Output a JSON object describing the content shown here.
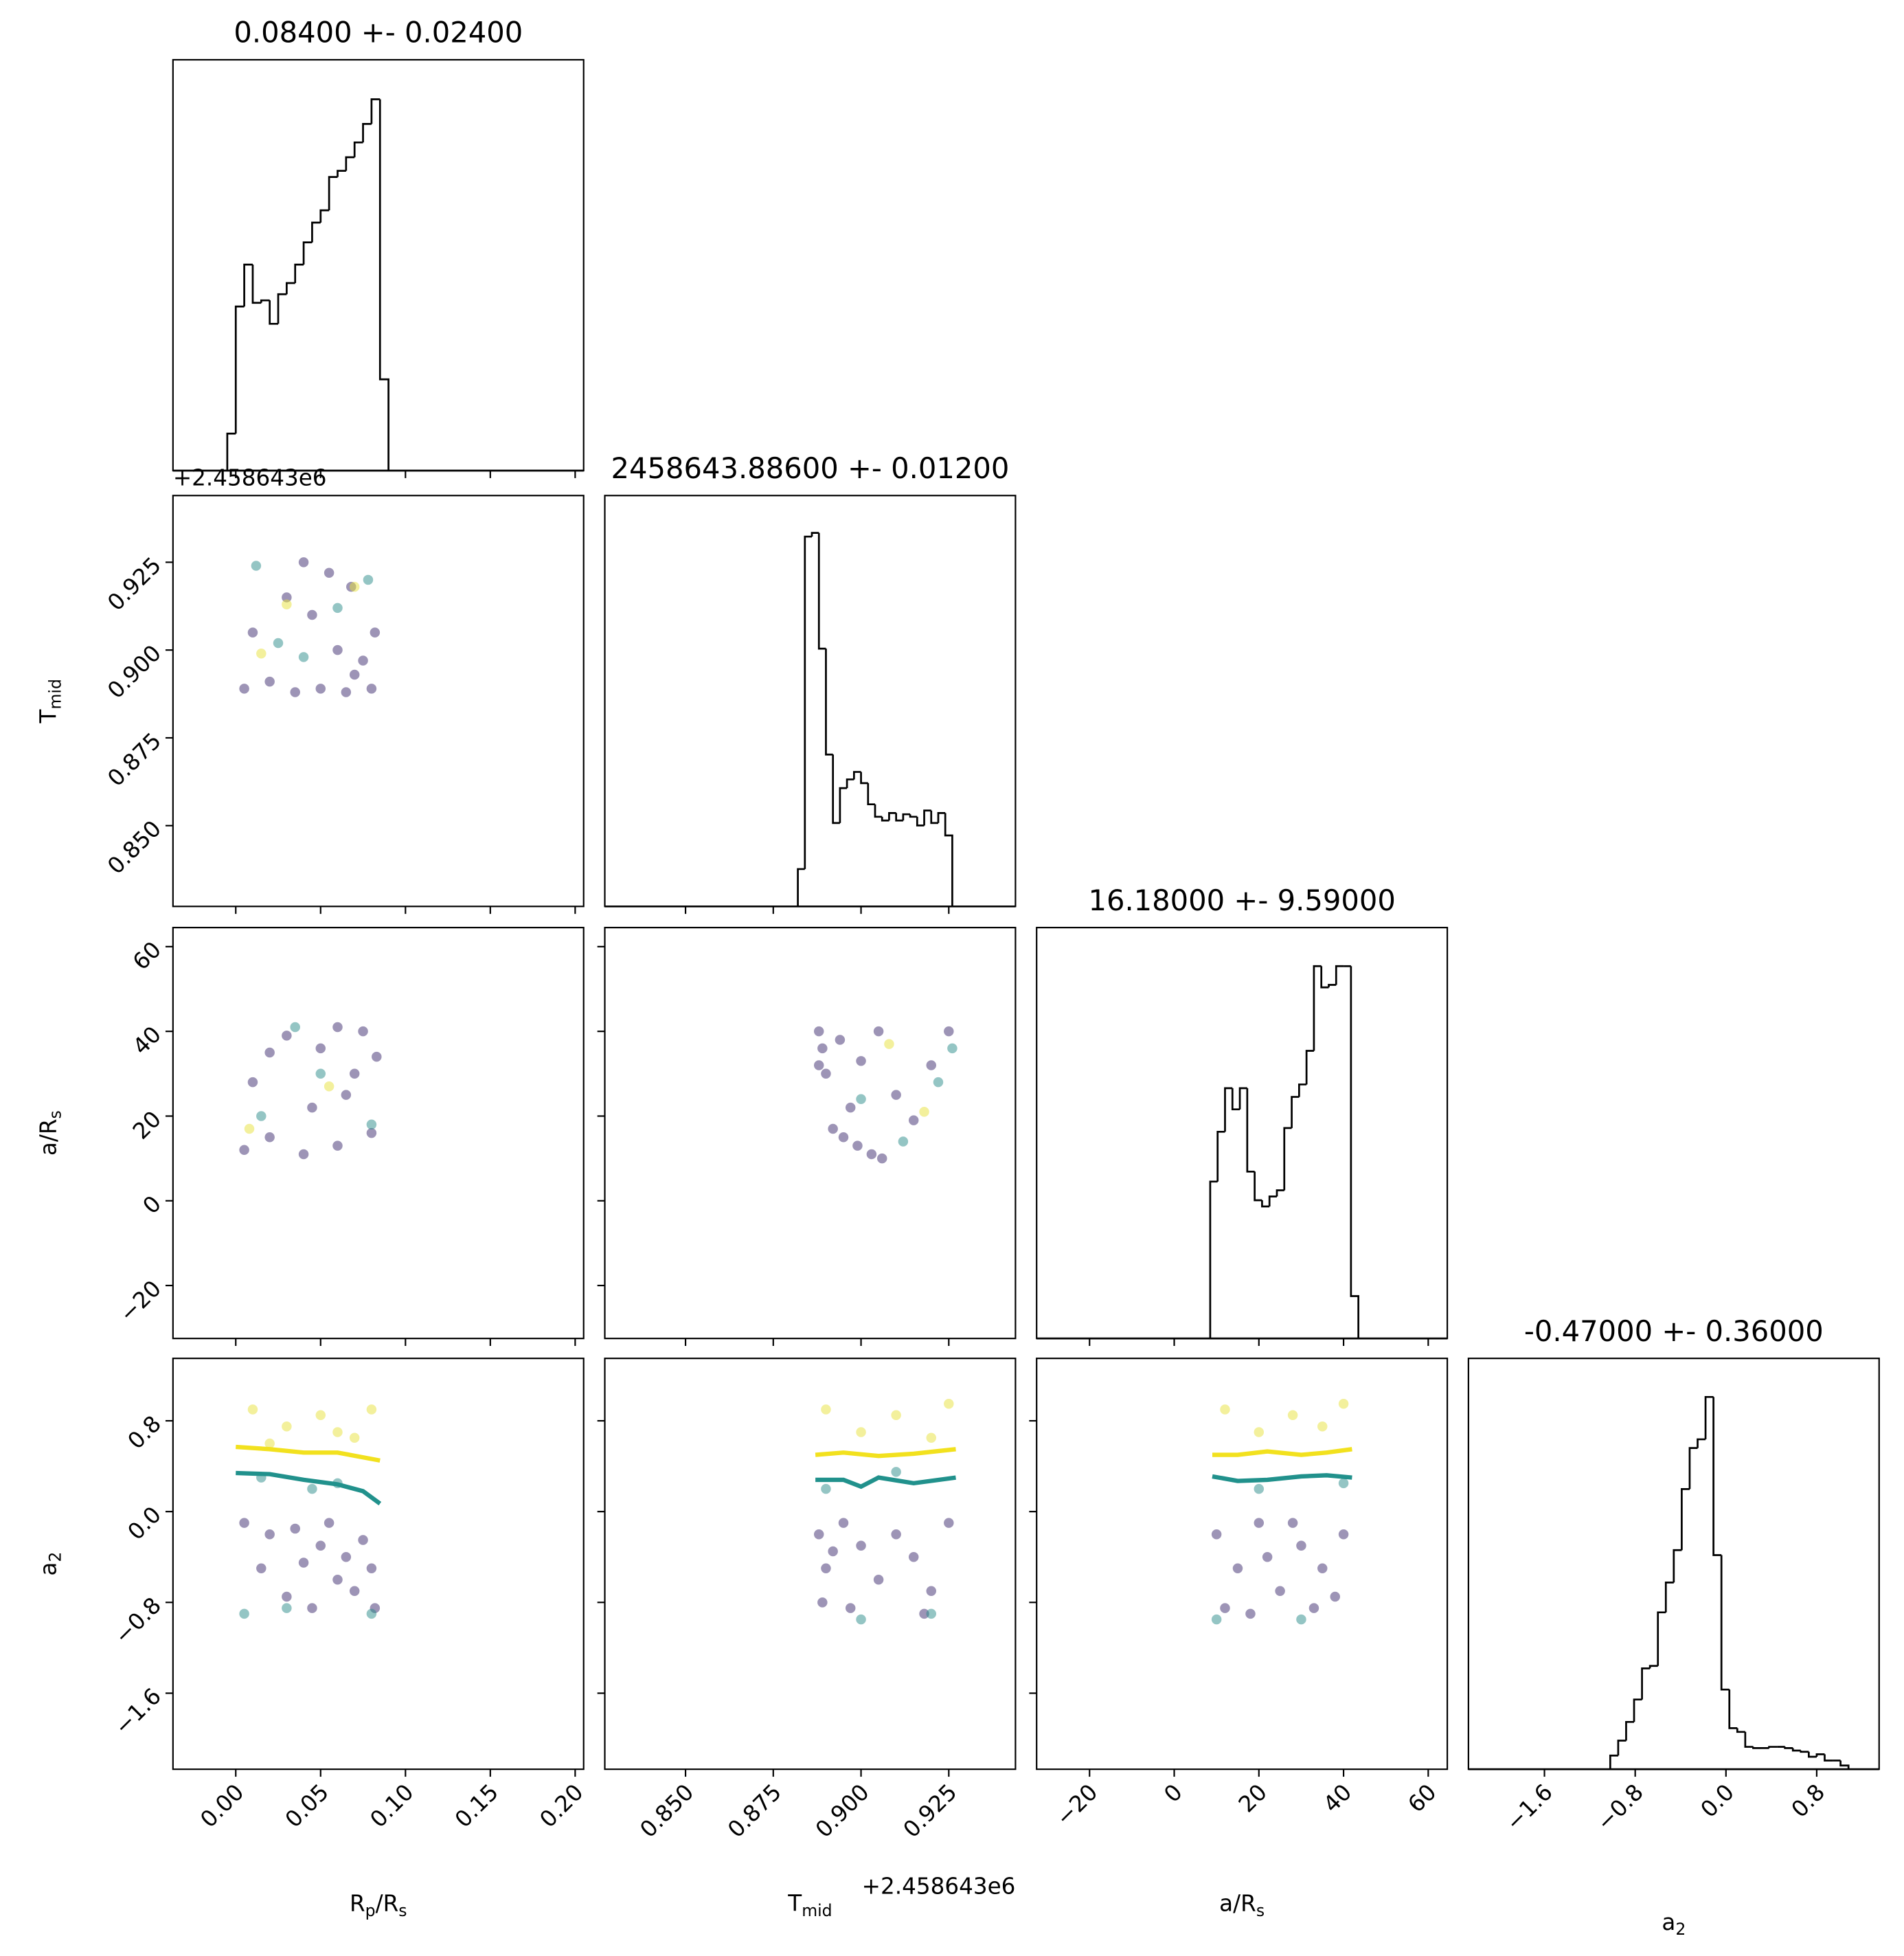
{
  "chart_data": {
    "type": "corner",
    "axes": [
      {
        "label": [
          "R",
          "p",
          "/R",
          "s"
        ],
        "lim": [
          -0.037,
          0.205
        ],
        "ticks": [
          {
            "value": 0,
            "label": "0.00"
          },
          {
            "value": 0.05,
            "label": "0.05"
          },
          {
            "value": 0.1,
            "label": "0.10"
          },
          {
            "value": 0.15,
            "label": "0.15"
          },
          {
            "value": 0.2,
            "label": "0.20"
          }
        ]
      },
      {
        "label": [
          "T",
          "mid"
        ],
        "lim": [
          0.827,
          0.944
        ],
        "offset": "+2.458643e6",
        "ticks": [
          {
            "value": 0.85,
            "label": "0.850"
          },
          {
            "value": 0.875,
            "label": "0.875"
          },
          {
            "value": 0.9,
            "label": "0.900"
          },
          {
            "value": 0.925,
            "label": "0.925"
          }
        ]
      },
      {
        "label": [
          "a/R",
          "s"
        ],
        "lim": [
          -32.5,
          64.5
        ],
        "ticks": [
          {
            "value": -20,
            "label": "−20"
          },
          0,
          20,
          40,
          60
        ]
      },
      {
        "label": [
          "a",
          "2"
        ],
        "lim": [
          -2.27,
          1.35
        ],
        "ticks": [
          {
            "value": -1.6,
            "label": "−1.6"
          },
          {
            "value": -0.8,
            "label": "−0.8"
          },
          {
            "value": 0,
            "label": "0.0"
          },
          0.8
        ]
      }
    ],
    "histograms": [
      {
        "title": "0.08400 +- 0.02400",
        "ylim": [
          0,
          333
        ],
        "bins": [
          -0.005,
          0,
          0.005,
          0.01,
          0.015,
          0.02,
          0.025,
          0.03,
          0.035,
          0.04,
          0.045,
          0.05,
          0.055,
          0.06,
          0.065,
          0.07,
          0.075,
          0.08,
          0.085,
          0.09
        ],
        "counts": [
          30,
          133,
          167,
          136,
          138,
          119,
          143,
          152,
          167,
          185,
          201,
          211,
          238,
          243,
          254,
          266,
          281,
          301,
          74
        ]
      },
      {
        "title": "2458643.88600 +- 0.01200",
        "ylim": [
          0,
          330
        ],
        "bins": [
          0.882,
          0.884,
          0.886,
          0.888,
          0.89,
          0.892,
          0.894,
          0.896,
          0.898,
          0.9,
          0.902,
          0.904,
          0.906,
          0.908,
          0.91,
          0.912,
          0.914,
          0.916,
          0.918,
          0.92,
          0.922,
          0.924,
          0.926
        ],
        "counts": [
          30,
          297,
          300,
          207,
          122,
          67,
          95,
          102,
          108,
          99,
          82,
          72,
          69,
          75,
          69,
          74,
          72,
          65,
          77,
          67,
          75,
          57
        ]
      },
      {
        "title": "16.18000 +- 9.59000",
        "ylim": [
          0,
          330
        ],
        "bins": [
          8.5,
          10.25,
          12,
          13.75,
          15.5,
          17.25,
          19,
          20.75,
          22.5,
          24.25,
          26,
          27.75,
          29.5,
          31.25,
          33,
          34.75,
          36.5,
          38.25,
          40,
          41.75,
          43.5
        ],
        "counts": [
          126,
          166,
          201,
          184,
          201,
          134,
          111,
          106,
          114,
          119,
          169,
          194,
          204,
          231,
          299,
          282,
          284,
          299,
          299,
          34
        ]
      },
      {
        "title": "-0.47000 +- 0.36000",
        "ylim": [
          0,
          330
        ],
        "bins": [
          -1.02,
          -0.95,
          -0.88,
          -0.81,
          -0.74,
          -0.67,
          -0.6,
          -0.53,
          -0.46,
          -0.39,
          -0.32,
          -0.25,
          -0.18,
          -0.11,
          -0.04,
          0.03,
          0.1,
          0.17,
          0.24,
          0.31,
          0.38,
          0.45,
          0.52,
          0.59,
          0.66,
          0.73,
          0.8,
          0.87,
          0.94,
          1.01,
          1.08
        ],
        "counts": [
          11,
          23,
          38,
          56,
          81,
          83,
          126,
          150,
          176,
          225,
          258,
          265,
          299,
          172,
          64,
          33,
          30,
          18,
          17,
          17,
          18,
          18,
          17,
          15,
          14,
          10,
          12,
          7,
          7,
          3
        ]
      }
    ],
    "panels": [
      {
        "series": [
          {
            "color": "#3b2a6e",
            "x": [
              0.005,
              0.02,
              0.035,
              0.05,
              0.065,
              0.08,
              0.07,
              0.06,
              0.075,
              0.045,
              0.01,
              0.03,
              0.055,
              0.082,
              0.068,
              0.04
            ],
            "y": [
              0.889,
              0.891,
              0.888,
              0.889,
              0.888,
              0.889,
              0.893,
              0.9,
              0.897,
              0.91,
              0.905,
              0.915,
              0.922,
              0.905,
              0.918,
              0.925
            ]
          },
          {
            "color": "#2a8c8a",
            "x": [
              0.012,
              0.04,
              0.06,
              0.078,
              0.025
            ],
            "y": [
              0.924,
              0.898,
              0.912,
              0.92,
              0.902
            ]
          },
          {
            "color": "#e8e23a",
            "x": [
              0.03,
              0.07,
              0.015
            ],
            "y": [
              0.913,
              0.918,
              0.899
            ]
          }
        ]
      },
      {
        "series": [
          {
            "color": "#3b2a6e",
            "x": [
              0.005,
              0.02,
              0.04,
              0.06,
              0.08,
              0.07,
              0.05,
              0.03,
              0.01,
              0.075,
              0.06,
              0.045,
              0.02,
              0.083,
              0.065
            ],
            "y": [
              12,
              15,
              11,
              13,
              16,
              30,
              36,
              39,
              28,
              40,
              41,
              22,
              35,
              34,
              25
            ]
          },
          {
            "color": "#2a8c8a",
            "x": [
              0.015,
              0.05,
              0.08,
              0.035
            ],
            "y": [
              20,
              30,
              18,
              41
            ]
          },
          {
            "color": "#e8e23a",
            "x": [
              0.008,
              0.055
            ],
            "y": [
              17,
              27
            ]
          }
        ]
      },
      {
        "series": [
          {
            "color": "#3b2a6e",
            "x": [
              0.888,
              0.889,
              0.888,
              0.892,
              0.895,
              0.899,
              0.903,
              0.906,
              0.89,
              0.894,
              0.9,
              0.91,
              0.915,
              0.92,
              0.925,
              0.897,
              0.905
            ],
            "y": [
              32,
              36,
              40,
              17,
              15,
              13,
              11,
              10,
              30,
              38,
              33,
              25,
              19,
              32,
              40,
              22,
              40
            ]
          },
          {
            "color": "#2a8c8a",
            "x": [
              0.912,
              0.922,
              0.9,
              0.926
            ],
            "y": [
              14,
              28,
              24,
              36
            ]
          },
          {
            "color": "#e8e23a",
            "x": [
              0.918,
              0.908
            ],
            "y": [
              21,
              37
            ]
          }
        ]
      },
      {
        "series": [
          {
            "color": "#3b2a6e",
            "x": [
              0.005,
              0.02,
              0.035,
              0.05,
              0.065,
              0.08,
              0.07,
              0.075,
              0.06,
              0.04,
              0.015,
              0.03,
              0.055,
              0.082,
              0.045
            ],
            "y": [
              -0.1,
              -0.2,
              -0.15,
              -0.3,
              -0.4,
              -0.5,
              -0.7,
              -0.25,
              -0.6,
              -0.45,
              -0.5,
              -0.75,
              -0.1,
              -0.85,
              -0.85
            ]
          },
          {
            "color": "#2a8c8a",
            "x": [
              0.005,
              0.03,
              0.06,
              0.08,
              0.045,
              0.015
            ],
            "y": [
              -0.9,
              -0.85,
              0.25,
              -0.9,
              0.2,
              0.3
            ]
          },
          {
            "color": "#e8e23a",
            "x": [
              0.01,
              0.03,
              0.05,
              0.07,
              0.08,
              0.02,
              0.06
            ],
            "y": [
              0.9,
              0.75,
              0.85,
              0.65,
              0.9,
              0.6,
              0.7
            ]
          }
        ],
        "lines": [
          {
            "color": "#f2e11e",
            "x": [
              0,
              0.02,
              0.04,
              0.06,
              0.085
            ],
            "y": [
              0.57,
              0.55,
              0.52,
              0.52,
              0.45
            ]
          },
          {
            "color": "#21918c",
            "x": [
              0,
              0.02,
              0.04,
              0.06,
              0.075,
              0.085
            ],
            "y": [
              0.34,
              0.33,
              0.28,
              0.24,
              0.18,
              0.07
            ]
          }
        ]
      },
      {
        "series": [
          {
            "color": "#3b2a6e",
            "x": [
              0.888,
              0.89,
              0.889,
              0.895,
              0.9,
              0.905,
              0.91,
              0.915,
              0.92,
              0.925,
              0.892,
              0.897,
              0.918
            ],
            "y": [
              -0.2,
              -0.5,
              -0.8,
              -0.1,
              -0.3,
              -0.6,
              -0.2,
              -0.4,
              -0.7,
              -0.1,
              -0.35,
              -0.85,
              -0.9
            ]
          },
          {
            "color": "#2a8c8a",
            "x": [
              0.9,
              0.92,
              0.89,
              0.91
            ],
            "y": [
              -0.95,
              -0.9,
              0.2,
              0.35
            ]
          },
          {
            "color": "#e8e23a",
            "x": [
              0.89,
              0.9,
              0.91,
              0.92,
              0.925
            ],
            "y": [
              0.9,
              0.7,
              0.85,
              0.65,
              0.95
            ]
          }
        ],
        "lines": [
          {
            "color": "#f2e11e",
            "x": [
              0.887,
              0.895,
              0.905,
              0.915,
              0.927
            ],
            "y": [
              0.5,
              0.52,
              0.49,
              0.51,
              0.55
            ]
          },
          {
            "color": "#21918c",
            "x": [
              0.887,
              0.895,
              0.9,
              0.905,
              0.915,
              0.927
            ],
            "y": [
              0.28,
              0.28,
              0.22,
              0.3,
              0.25,
              0.3
            ]
          }
        ]
      },
      {
        "series": [
          {
            "color": "#3b2a6e",
            "x": [
              10,
              15,
              20,
              25,
              30,
              35,
              40,
              12,
              18,
              28,
              38,
              33,
              22
            ],
            "y": [
              -0.2,
              -0.5,
              -0.1,
              -0.7,
              -0.3,
              -0.5,
              -0.2,
              -0.85,
              -0.9,
              -0.1,
              -0.75,
              -0.85,
              -0.4
            ]
          },
          {
            "color": "#2a8c8a",
            "x": [
              10,
              30,
              40,
              20
            ],
            "y": [
              -0.95,
              -0.95,
              0.25,
              0.2
            ]
          },
          {
            "color": "#e8e23a",
            "x": [
              12,
              20,
              28,
              35,
              40
            ],
            "y": [
              0.9,
              0.7,
              0.85,
              0.75,
              0.95
            ]
          }
        ],
        "lines": [
          {
            "color": "#f2e11e",
            "x": [
              9,
              15,
              22,
              30,
              36,
              42
            ],
            "y": [
              0.5,
              0.5,
              0.53,
              0.5,
              0.52,
              0.55
            ]
          },
          {
            "color": "#21918c",
            "x": [
              9,
              15,
              22,
              30,
              36,
              42
            ],
            "y": [
              0.31,
              0.27,
              0.28,
              0.31,
              0.32,
              0.3
            ]
          }
        ]
      }
    ]
  }
}
